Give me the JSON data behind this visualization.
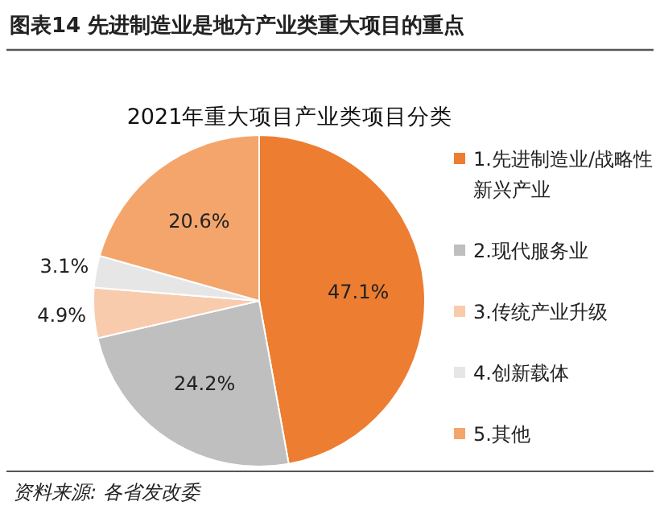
{
  "chart_data": {
    "type": "pie",
    "title": "图表14    先进制造业是地方产业类重大项目的重点",
    "subtitle": "2021年重大项目产业类项目分类",
    "categories": [
      "1.先进制造业/战略性新兴产业",
      "2.现代服务业",
      "3.传统产业升级",
      "4.创新载体",
      "5.其他"
    ],
    "values": [
      47.1,
      24.2,
      4.9,
      3.1,
      20.6
    ],
    "colors": [
      "#ed7d31",
      "#bfbfbf",
      "#f8cbad",
      "#e7e6e6",
      "#f4a56c"
    ],
    "value_labels": [
      "47.1%",
      "24.2%",
      "4.9%",
      "3.1%",
      "20.6%"
    ],
    "legend": "right",
    "annotations": [
      "资料来源: 各省发改委"
    ]
  }
}
